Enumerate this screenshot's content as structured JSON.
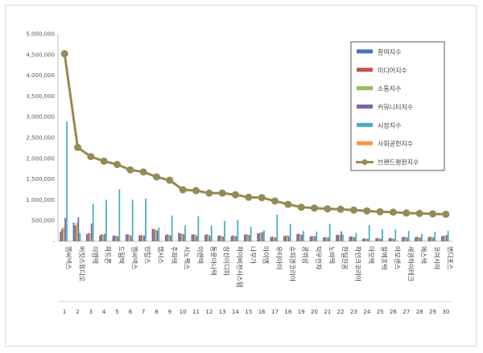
{
  "chart_data": {
    "type": "bar",
    "title": "",
    "xlabel": "",
    "ylabel": "",
    "ylim": [
      0,
      5000000
    ],
    "yticks": [
      0,
      500000,
      1000000,
      1500000,
      2000000,
      2500000,
      3000000,
      3500000,
      4000000,
      4500000,
      5000000
    ],
    "ytick_labels": [
      "-",
      "500,000",
      "1,000,000",
      "1,500,000",
      "2,000,000",
      "2,500,000",
      "3,000,000",
      "3,500,000",
      "4,000,000",
      "4,500,000",
      "5,000,000"
    ],
    "grid": false,
    "legend_position": "top-right",
    "ranks": [
      "1",
      "2",
      "3",
      "4",
      "5",
      "6",
      "7",
      "8",
      "9",
      "10",
      "11",
      "12",
      "13",
      "14",
      "15",
      "16",
      "17",
      "18",
      "19",
      "20",
      "21",
      "22",
      "23",
      "24",
      "25",
      "26",
      "27",
      "28",
      "29",
      "30"
    ],
    "categories": [
      "엠씨넥스",
      "버킷스튜디오",
      "이엠텍",
      "파트론",
      "드림텍",
      "엠씨넥스",
      "인탑스",
      "캠시스",
      "주파텍",
      "시노펙스",
      "이랜텍",
      "동운아나텍",
      "상신이디피",
      "하이비젼시스템",
      "나무가",
      "아이엠",
      "유티아이",
      "슈피겐코리아",
      "광위성",
      "덕우전자",
      "노바텍",
      "한일진공",
      "하인크코리아",
      "아모텍",
      "알에프텍",
      "아모센스",
      "세경하이테크",
      "에스텍",
      "코아시아",
      "앤디포스"
    ],
    "series": [
      {
        "name": "참여지수",
        "color": "#4472c4",
        "values": [
          230000,
          450000,
          170000,
          140000,
          130000,
          160000,
          140000,
          300000,
          150000,
          200000,
          160000,
          150000,
          130000,
          120000,
          160000,
          190000,
          100000,
          120000,
          170000,
          110000,
          90000,
          150000,
          110000,
          60000,
          70000,
          70000,
          100000,
          100000,
          100000,
          120000
        ]
      },
      {
        "name": "미디어지수",
        "color": "#c0504d",
        "values": [
          300000,
          380000,
          200000,
          170000,
          140000,
          170000,
          150000,
          290000,
          170000,
          190000,
          170000,
          170000,
          140000,
          140000,
          170000,
          200000,
          110000,
          140000,
          180000,
          130000,
          100000,
          160000,
          120000,
          70000,
          80000,
          80000,
          110000,
          110000,
          110000,
          130000
        ]
      },
      {
        "name": "소통지수",
        "color": "#9bbb59",
        "values": [
          330000,
          450000,
          190000,
          160000,
          130000,
          160000,
          140000,
          280000,
          160000,
          180000,
          160000,
          160000,
          130000,
          130000,
          160000,
          210000,
          100000,
          140000,
          170000,
          120000,
          90000,
          150000,
          110000,
          60000,
          70000,
          70000,
          100000,
          100000,
          100000,
          130000
        ]
      },
      {
        "name": "커뮤니티지수",
        "color": "#8064a2",
        "values": [
          560000,
          580000,
          430000,
          180000,
          120000,
          130000,
          140000,
          260000,
          140000,
          170000,
          130000,
          130000,
          110000,
          120000,
          150000,
          220000,
          90000,
          120000,
          160000,
          120000,
          90000,
          240000,
          100000,
          60000,
          60000,
          60000,
          90000,
          90000,
          90000,
          150000
        ]
      },
      {
        "name": "시장지수",
        "color": "#4bacc6",
        "values": [
          2880000,
          200000,
          900000,
          1000000,
          1250000,
          1000000,
          1030000,
          330000,
          620000,
          380000,
          600000,
          380000,
          490000,
          510000,
          350000,
          260000,
          640000,
          420000,
          250000,
          230000,
          420000,
          160000,
          200000,
          390000,
          290000,
          280000,
          250000,
          180000,
          230000,
          250000
        ]
      },
      {
        "name": "사회공헌지수",
        "color": "#f79646",
        "values": [
          10000,
          10000,
          10000,
          10000,
          10000,
          10000,
          10000,
          10000,
          10000,
          10000,
          10000,
          10000,
          10000,
          10000,
          10000,
          10000,
          10000,
          10000,
          10000,
          10000,
          10000,
          10000,
          10000,
          10000,
          10000,
          10000,
          10000,
          10000,
          10000,
          10000
        ]
      }
    ],
    "line_series": {
      "name": "브랜드평판지수",
      "color": "#948a54",
      "values": [
        4520000,
        2260000,
        2040000,
        1930000,
        1850000,
        1720000,
        1670000,
        1550000,
        1470000,
        1240000,
        1220000,
        1160000,
        1160000,
        1120000,
        1060000,
        1050000,
        970000,
        890000,
        820000,
        800000,
        780000,
        770000,
        750000,
        730000,
        710000,
        700000,
        680000,
        670000,
        660000,
        650000
      ]
    }
  }
}
